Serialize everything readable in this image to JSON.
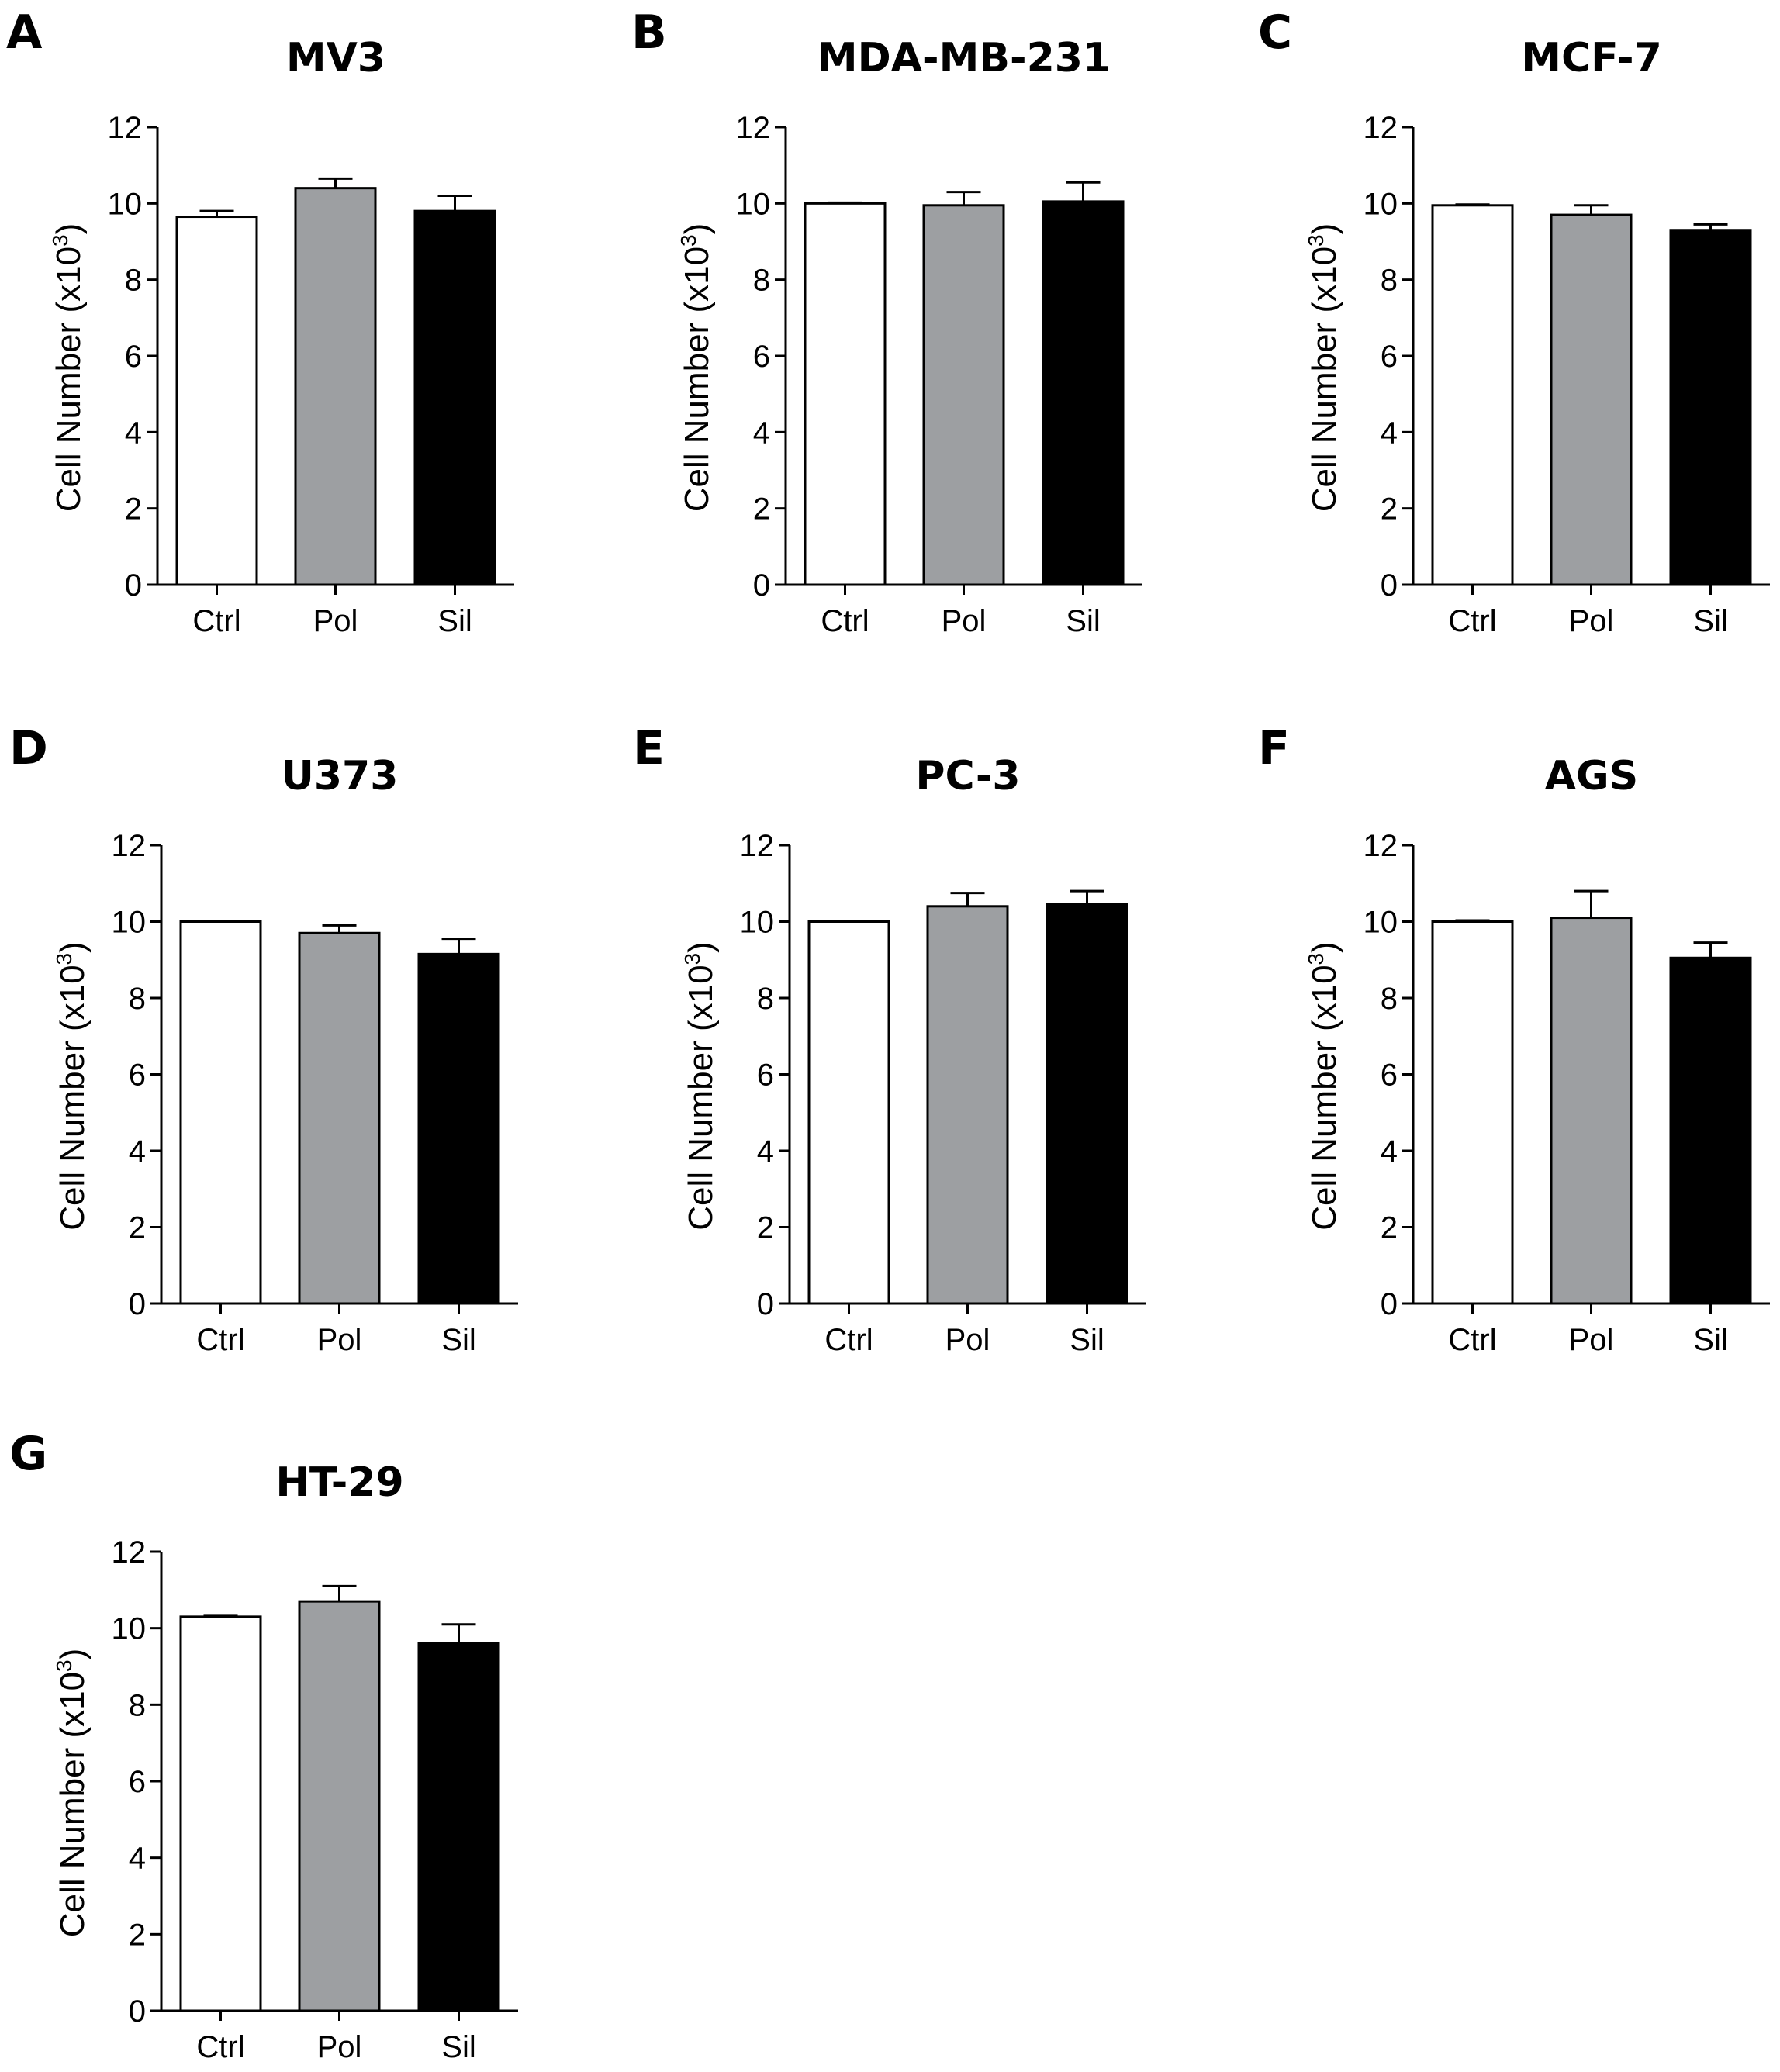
{
  "colors": {
    "ctrl": "#ffffff",
    "pol": "#9d9fa2",
    "sil": "#000000",
    "axis": "#000000"
  },
  "chart_data": [
    {
      "type": "bar",
      "panel": "A",
      "title": "MV3",
      "categories": [
        "Ctrl",
        "Pol",
        "Sil"
      ],
      "values": [
        9.65,
        10.4,
        9.8
      ],
      "errors": [
        0.15,
        0.25,
        0.4
      ],
      "xlabel": "",
      "ylabel_prefix": "Cell Number (x10",
      "ylabel_exp": "3",
      "ylabel_suffix": ")",
      "ylim": [
        0,
        12
      ],
      "yticks": [
        "0",
        "2",
        "4",
        "6",
        "8",
        "10",
        "12"
      ]
    },
    {
      "type": "bar",
      "panel": "B",
      "title": "MDA-MB-231",
      "categories": [
        "Ctrl",
        "Pol",
        "Sil"
      ],
      "values": [
        10.0,
        9.95,
        10.05
      ],
      "errors": [
        0.02,
        0.35,
        0.5
      ],
      "xlabel": "",
      "ylabel_prefix": "Cell Number (x10",
      "ylabel_exp": "3",
      "ylabel_suffix": ")",
      "ylim": [
        0,
        12
      ],
      "yticks": [
        "0",
        "2",
        "4",
        "6",
        "8",
        "10",
        "12"
      ]
    },
    {
      "type": "bar",
      "panel": "C",
      "title": "MCF-7",
      "categories": [
        "Ctrl",
        "Pol",
        "Sil"
      ],
      "values": [
        9.95,
        9.7,
        9.3
      ],
      "errors": [
        0.02,
        0.25,
        0.15
      ],
      "xlabel": "",
      "ylabel_prefix": "Cell Number (x10",
      "ylabel_exp": "3",
      "ylabel_suffix": ")",
      "ylim": [
        0,
        12
      ],
      "yticks": [
        "0",
        "2",
        "4",
        "6",
        "8",
        "10",
        "12"
      ]
    },
    {
      "type": "bar",
      "panel": "D",
      "title": "U373",
      "categories": [
        "Ctrl",
        "Pol",
        "Sil"
      ],
      "values": [
        10.0,
        9.7,
        9.15
      ],
      "errors": [
        0.02,
        0.2,
        0.4
      ],
      "xlabel": "",
      "ylabel_prefix": "Cell Number (x10",
      "ylabel_exp": "3",
      "ylabel_suffix": ")",
      "ylim": [
        0,
        12
      ],
      "yticks": [
        "0",
        "2",
        "4",
        "6",
        "8",
        "10",
        "12"
      ]
    },
    {
      "type": "bar",
      "panel": "E",
      "title": "PC-3",
      "categories": [
        "Ctrl",
        "Pol",
        "Sil"
      ],
      "values": [
        10.0,
        10.4,
        10.45
      ],
      "errors": [
        0.02,
        0.35,
        0.35
      ],
      "xlabel": "",
      "ylabel_prefix": "Cell Number (x10",
      "ylabel_exp": "3",
      "ylabel_suffix": ")",
      "ylim": [
        0,
        12
      ],
      "yticks": [
        "0",
        "2",
        "4",
        "6",
        "8",
        "10",
        "12"
      ]
    },
    {
      "type": "bar",
      "panel": "F",
      "title": "AGS",
      "categories": [
        "Ctrl",
        "Pol",
        "Sil"
      ],
      "values": [
        10.0,
        10.1,
        9.05
      ],
      "errors": [
        0.03,
        0.7,
        0.4
      ],
      "xlabel": "",
      "ylabel_prefix": "Cell Number (x10",
      "ylabel_exp": "3",
      "ylabel_suffix": ")",
      "ylim": [
        0,
        12
      ],
      "yticks": [
        "0",
        "2",
        "4",
        "6",
        "8",
        "10",
        "12"
      ]
    },
    {
      "type": "bar",
      "panel": "G",
      "title": "HT-29",
      "categories": [
        "Ctrl",
        "Pol",
        "Sil"
      ],
      "values": [
        10.3,
        10.7,
        9.6
      ],
      "errors": [
        0.02,
        0.4,
        0.5
      ],
      "xlabel": "",
      "ylabel_prefix": "Cell Number (x10",
      "ylabel_exp": "3",
      "ylabel_suffix": ")",
      "ylim": [
        0,
        12
      ],
      "yticks": [
        "0",
        "2",
        "4",
        "6",
        "8",
        "10",
        "12"
      ]
    }
  ]
}
